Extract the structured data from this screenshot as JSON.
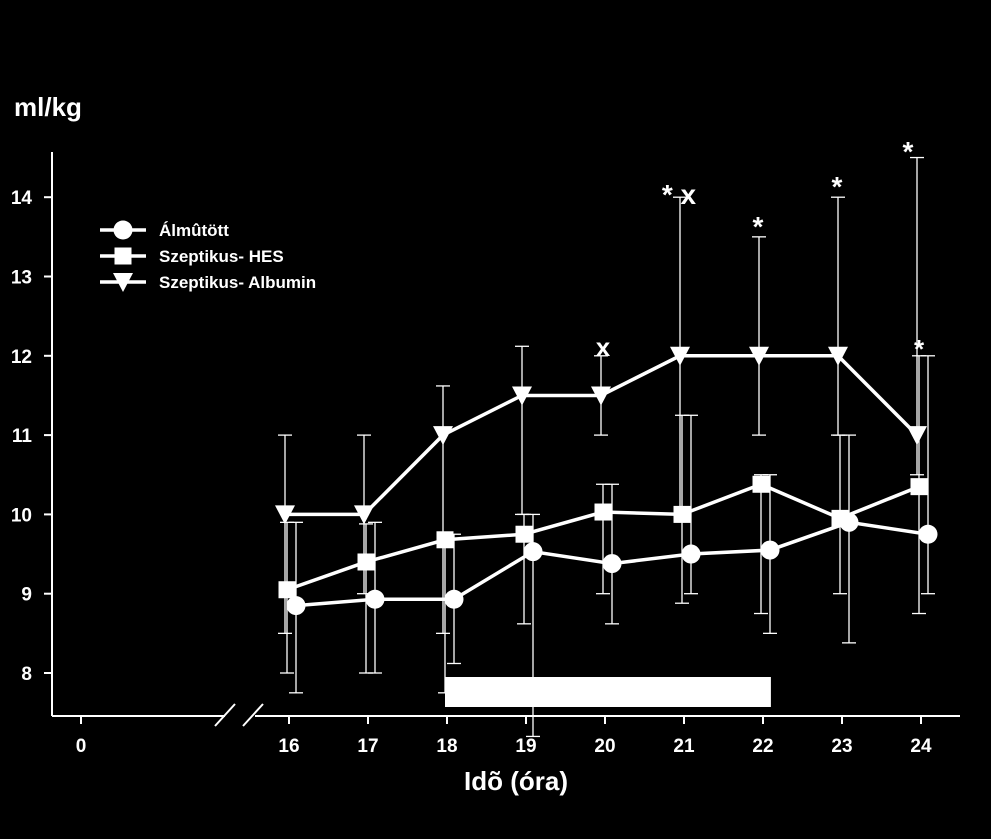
{
  "chart_data": {
    "type": "line",
    "ylabel": "ml/kg",
    "xlabel": "Idõ (óra)",
    "ylim": [
      7.5,
      15
    ],
    "x_tick_labels": [
      "0",
      "16",
      "17",
      "18",
      "19",
      "20",
      "21",
      "22",
      "23",
      "24"
    ],
    "y_tick_labels": [
      "8",
      "9",
      "10",
      "11",
      "12",
      "13",
      "14"
    ],
    "axis_break": true,
    "x": [
      16,
      17,
      18,
      19,
      20,
      21,
      22,
      23,
      24
    ],
    "series": [
      {
        "name": "Álmûtött",
        "marker": "circle",
        "values": [
          8.85,
          8.93,
          8.93,
          9.53,
          9.38,
          9.5,
          9.55,
          9.9,
          9.75
        ],
        "error": [
          [
            7.75,
            9.9
          ],
          [
            8.0,
            9.9
          ],
          [
            8.12,
            9.75
          ],
          [
            7.2,
            10.0
          ],
          [
            8.62,
            10.38
          ],
          [
            9.0,
            11.25
          ],
          [
            8.5,
            10.5
          ],
          [
            8.38,
            11.0
          ],
          [
            9.0,
            12.0
          ]
        ]
      },
      {
        "name": "Szeptikus- HES",
        "marker": "square",
        "values": [
          9.05,
          9.4,
          9.68,
          9.75,
          10.03,
          10.0,
          10.38,
          9.95,
          10.35
        ],
        "error": [
          [
            8.0,
            9.9
          ],
          [
            8.0,
            9.88
          ],
          [
            7.75,
            9.75
          ],
          [
            8.62,
            10.0
          ],
          [
            9.0,
            10.38
          ],
          [
            8.88,
            11.25
          ],
          [
            8.75,
            10.5
          ],
          [
            9.0,
            11.0
          ],
          [
            8.75,
            12.0
          ]
        ]
      },
      {
        "name": "Szeptikus- Albumin",
        "marker": "triangle-down",
        "values": [
          10.0,
          10.0,
          11.0,
          11.5,
          11.5,
          12.0,
          12.0,
          12.0,
          11.0
        ],
        "error": [
          [
            8.5,
            11.0
          ],
          [
            9.0,
            11.0
          ],
          [
            8.5,
            11.62
          ],
          [
            10.0,
            12.12
          ],
          [
            11.0,
            12.0
          ],
          [
            10.0,
            14.0
          ],
          [
            11.0,
            13.5
          ],
          [
            11.0,
            14.0
          ],
          [
            10.5,
            14.5
          ]
        ]
      }
    ],
    "annotations": [
      {
        "x": 20,
        "text": "x"
      },
      {
        "x": 21,
        "text": "* x"
      },
      {
        "x": 22,
        "text": "*"
      },
      {
        "x": 23,
        "text": "*"
      },
      {
        "x": 24,
        "text": "*"
      },
      {
        "x": 24,
        "text": "*"
      }
    ],
    "bar_interval": [
      18,
      22.1
    ],
    "legend_position": "top-left"
  }
}
